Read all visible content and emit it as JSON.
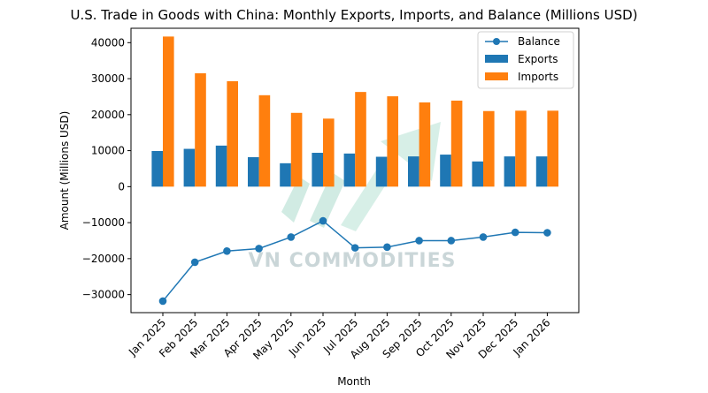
{
  "chart_data": {
    "type": "bar",
    "title": "U.S. Trade in Goods with China: Monthly Exports, Imports, and Balance (Millions USD)",
    "xlabel": "Month",
    "ylabel": "Amount (Millions USD)",
    "ylim": [
      -35000,
      44000
    ],
    "yticks": [
      40000,
      30000,
      20000,
      10000,
      0,
      -10000,
      -20000,
      -30000
    ],
    "categories": [
      "Jan 2025",
      "Feb 2025",
      "Mar 2025",
      "Apr 2025",
      "May 2025",
      "Jun 2025",
      "Jul 2025",
      "Aug 2025",
      "Sep 2025",
      "Oct 2025",
      "Nov 2025",
      "Dec 2025",
      "Jan 2026"
    ],
    "series": [
      {
        "name": "Balance",
        "type": "line",
        "color": "#1f77b4",
        "values": [
          -31800,
          -21000,
          -17900,
          -17200,
          -14000,
          -9500,
          -17000,
          -16800,
          -15000,
          -15000,
          -14000,
          -12700,
          -12800
        ]
      },
      {
        "name": "Exports",
        "type": "bar",
        "color": "#1f77b4",
        "values": [
          9900,
          10500,
          11400,
          8200,
          6500,
          9400,
          9200,
          8300,
          8400,
          8900,
          7000,
          8400,
          8400
        ]
      },
      {
        "name": "Imports",
        "type": "bar",
        "color": "#ff7f0e",
        "values": [
          41700,
          31500,
          29300,
          25400,
          20500,
          18900,
          26300,
          25100,
          23400,
          23900,
          21000,
          21100,
          21100
        ]
      }
    ],
    "legend": {
      "position": "top-right",
      "entries": [
        "Balance",
        "Exports",
        "Imports"
      ]
    },
    "grid": false
  },
  "watermark": {
    "text": "VN COMMODITIES"
  }
}
